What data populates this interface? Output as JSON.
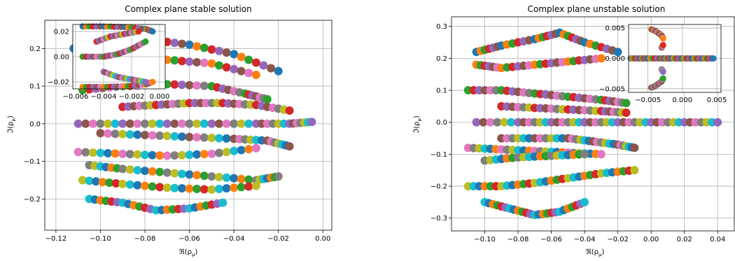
{
  "chart_data": [
    {
      "type": "scatter",
      "title": "Complex plane stable solution",
      "xlabel": "ℜ(ρ_μ)",
      "ylabel": "ℑ(ρ_μ)",
      "xlim": [
        -0.125,
        0.004
      ],
      "ylim": [
        -0.283,
        0.275
      ],
      "xticks": [
        -0.12,
        -0.1,
        -0.08,
        -0.06,
        -0.04,
        -0.02,
        0.0
      ],
      "xtick_labels": [
        "−0.12",
        "−0.10",
        "−0.08",
        "−0.06",
        "−0.04",
        "−0.02",
        "0.00"
      ],
      "yticks": [
        -0.2,
        -0.1,
        0.0,
        0.1,
        0.2
      ],
      "ytick_labels": [
        "−0.2",
        "−0.1",
        "0.0",
        "0.1",
        "0.2"
      ],
      "grid": true,
      "colors": [
        "#1f77b4",
        "#ff7f0e",
        "#2ca02c",
        "#d62728",
        "#9467bd",
        "#8c564b",
        "#e377c2",
        "#7f7f7f",
        "#bcbd22",
        "#17becf"
      ],
      "series": [
        {
          "values": [
            [
              -0.112,
              0.2
            ],
            [
              -0.1,
              0.22
            ],
            [
              -0.08,
              0.225
            ],
            [
              -0.06,
              0.21
            ],
            [
              -0.04,
              0.185
            ],
            [
              -0.02,
              0.14
            ]
          ]
        },
        {
          "values": [
            [
              -0.11,
              0.15
            ],
            [
              -0.09,
              0.16
            ],
            [
              -0.07,
              0.17
            ],
            [
              -0.05,
              0.16
            ],
            [
              -0.03,
              0.13
            ]
          ]
        },
        {
          "values": [
            [
              -0.108,
              0.09
            ],
            [
              -0.09,
              0.1
            ],
            [
              -0.07,
              0.105
            ],
            [
              -0.05,
              0.1
            ],
            [
              -0.035,
              0.08
            ],
            [
              -0.025,
              0.065
            ]
          ]
        },
        {
          "values": [
            [
              -0.09,
              0.045
            ],
            [
              -0.075,
              0.05
            ],
            [
              -0.06,
              0.055
            ],
            [
              -0.045,
              0.055
            ],
            [
              -0.03,
              0.05
            ],
            [
              -0.015,
              0.035
            ]
          ]
        },
        {
          "values": [
            [
              -0.11,
              0.0
            ],
            [
              -0.09,
              0.0
            ],
            [
              -0.07,
              0.0
            ],
            [
              -0.05,
              0.0
            ],
            [
              -0.03,
              0.0
            ],
            [
              -0.015,
              0.0
            ],
            [
              -0.005,
              0.005
            ]
          ]
        },
        {
          "values": [
            [
              -0.1,
              -0.025
            ],
            [
              -0.08,
              -0.03
            ],
            [
              -0.06,
              -0.035
            ],
            [
              -0.04,
              -0.04
            ],
            [
              -0.025,
              -0.045
            ],
            [
              -0.015,
              -0.06
            ]
          ]
        },
        {
          "values": [
            [
              -0.11,
              -0.075
            ],
            [
              -0.09,
              -0.08
            ],
            [
              -0.07,
              -0.085
            ],
            [
              -0.05,
              -0.08
            ],
            [
              -0.03,
              -0.065
            ]
          ]
        },
        {
          "values": [
            [
              -0.105,
              -0.11
            ],
            [
              -0.09,
              -0.12
            ],
            [
              -0.07,
              -0.13
            ],
            [
              -0.05,
              -0.14
            ],
            [
              -0.03,
              -0.15
            ],
            [
              -0.02,
              -0.14
            ]
          ]
        },
        {
          "values": [
            [
              -0.108,
              -0.15
            ],
            [
              -0.09,
              -0.16
            ],
            [
              -0.07,
              -0.17
            ],
            [
              -0.05,
              -0.175
            ],
            [
              -0.03,
              -0.165
            ]
          ]
        },
        {
          "values": [
            [
              -0.105,
              -0.2
            ],
            [
              -0.09,
              -0.21
            ],
            [
              -0.075,
              -0.23
            ],
            [
              -0.06,
              -0.225
            ],
            [
              -0.045,
              -0.21
            ]
          ]
        }
      ],
      "inset": {
        "xlim": [
          -0.0062,
          0.0004
        ],
        "ylim": [
          -0.0255,
          0.0255
        ],
        "xticks": [
          -0.006,
          -0.004,
          -0.002,
          0.0
        ],
        "xtick_labels": [
          "−0.006",
          "−0.004",
          "−0.002",
          "0.000"
        ],
        "yticks": [
          -0.02,
          0.0,
          0.02
        ],
        "ytick_labels": [
          "−0.02",
          "0.00",
          "0.02"
        ],
        "series": [
          {
            "values": [
              [
                -0.0055,
                0.024
              ],
              [
                -0.004,
                0.024
              ],
              [
                -0.0025,
                0.0235
              ],
              [
                -0.001,
                0.022
              ],
              [
                -0.0005,
                0.02
              ]
            ]
          },
          {
            "values": [
              [
                -0.0055,
                -0.024
              ],
              [
                -0.004,
                -0.024
              ],
              [
                -0.0025,
                -0.0235
              ],
              [
                -0.001,
                -0.022
              ],
              [
                -0.0005,
                -0.02
              ]
            ]
          },
          {
            "values": [
              [
                -0.0055,
                0.0
              ],
              [
                -0.004,
                0.0
              ],
              [
                -0.003,
                0.002
              ],
              [
                -0.002,
                0.006
              ],
              [
                -0.001,
                0.012
              ]
            ]
          },
          {
            "values": [
              [
                -0.0045,
                0.012
              ],
              [
                -0.0035,
                0.016
              ],
              [
                -0.0025,
                0.018
              ],
              [
                -0.0015,
                0.02
              ]
            ]
          },
          {
            "values": [
              [
                -0.004,
                -0.012
              ],
              [
                -0.003,
                -0.016
              ],
              [
                -0.002,
                -0.018
              ],
              [
                -0.001,
                -0.02
              ]
            ]
          }
        ]
      }
    },
    {
      "type": "scatter",
      "title": "Complex plane unstable solution",
      "xlabel": "ℜ(ρ_μ)",
      "ylabel": "ℑ(ρ_μ)",
      "xlim": [
        -0.12,
        0.05
      ],
      "ylim": [
        -0.34,
        0.33
      ],
      "xticks": [
        -0.1,
        -0.08,
        -0.06,
        -0.04,
        -0.02,
        0.0,
        0.02,
        0.04
      ],
      "xtick_labels": [
        "−0.10",
        "−0.08",
        "−0.06",
        "−0.04",
        "−0.02",
        "0.00",
        "0.02",
        "0.04"
      ],
      "yticks": [
        -0.3,
        -0.2,
        -0.1,
        0.0,
        0.1,
        0.2,
        0.3
      ],
      "ytick_labels": [
        "−0.3",
        "−0.2",
        "−0.1",
        "0.0",
        "0.1",
        "0.2",
        "0.3"
      ],
      "grid": true,
      "colors": [
        "#1f77b4",
        "#ff7f0e",
        "#2ca02c",
        "#d62728",
        "#9467bd",
        "#8c564b",
        "#e377c2",
        "#7f7f7f",
        "#bcbd22",
        "#17becf"
      ],
      "series": [
        {
          "values": [
            [
              -0.105,
              0.22
            ],
            [
              -0.09,
              0.24
            ],
            [
              -0.07,
              0.26
            ],
            [
              -0.055,
              0.28
            ],
            [
              -0.04,
              0.25
            ],
            [
              -0.02,
              0.22
            ]
          ]
        },
        {
          "values": [
            [
              -0.105,
              0.18
            ],
            [
              -0.09,
              0.17
            ],
            [
              -0.07,
              0.18
            ],
            [
              -0.05,
              0.19
            ],
            [
              -0.03,
              0.2
            ]
          ]
        },
        {
          "values": [
            [
              -0.11,
              0.1
            ],
            [
              -0.09,
              0.1
            ],
            [
              -0.07,
              0.09
            ],
            [
              -0.05,
              0.08
            ],
            [
              -0.03,
              0.07
            ],
            [
              -0.015,
              0.06
            ]
          ]
        },
        {
          "values": [
            [
              -0.09,
              0.05
            ],
            [
              -0.07,
              0.045
            ],
            [
              -0.05,
              0.04
            ],
            [
              -0.03,
              0.035
            ],
            [
              -0.015,
              0.03
            ]
          ]
        },
        {
          "values": [
            [
              -0.105,
              0.0
            ],
            [
              -0.08,
              0.0
            ],
            [
              -0.06,
              0.0
            ],
            [
              -0.04,
              0.0
            ],
            [
              -0.02,
              0.0
            ],
            [
              0.0,
              0.0
            ],
            [
              0.02,
              0.0
            ],
            [
              0.04,
              0.0
            ]
          ]
        },
        {
          "values": [
            [
              -0.09,
              -0.05
            ],
            [
              -0.07,
              -0.05
            ],
            [
              -0.05,
              -0.05
            ],
            [
              -0.035,
              -0.06
            ],
            [
              -0.02,
              -0.07
            ],
            [
              -0.01,
              -0.08
            ]
          ]
        },
        {
          "values": [
            [
              -0.11,
              -0.08
            ],
            [
              -0.09,
              -0.085
            ],
            [
              -0.07,
              -0.09
            ],
            [
              -0.05,
              -0.095
            ],
            [
              -0.03,
              -0.1
            ]
          ]
        },
        {
          "values": [
            [
              -0.1,
              -0.12
            ],
            [
              -0.08,
              -0.11
            ],
            [
              -0.06,
              -0.105
            ],
            [
              -0.04,
              -0.1
            ]
          ]
        },
        {
          "values": [
            [
              -0.11,
              -0.2
            ],
            [
              -0.09,
              -0.2
            ],
            [
              -0.07,
              -0.19
            ],
            [
              -0.05,
              -0.175
            ],
            [
              -0.03,
              -0.16
            ],
            [
              -0.01,
              -0.15
            ]
          ]
        },
        {
          "values": [
            [
              -0.1,
              -0.25
            ],
            [
              -0.085,
              -0.27
            ],
            [
              -0.07,
              -0.29
            ],
            [
              -0.055,
              -0.28
            ],
            [
              -0.04,
              -0.25
            ]
          ]
        }
      ],
      "inset": {
        "xlim": [
          -0.0078,
          0.0056
        ],
        "ylim": [
          -0.0056,
          0.0056
        ],
        "xticks": [
          -0.005,
          0.0,
          0.005
        ],
        "xtick_labels": [
          "−0.005",
          "0.000",
          "0.005"
        ],
        "yticks": [
          -0.005,
          0.0,
          0.005
        ],
        "ytick_labels": [
          "−0.005",
          "0.000",
          "0.005"
        ],
        "series": [
          {
            "values": [
              [
                -0.0075,
                0.0
              ],
              [
                -0.006,
                0.0
              ],
              [
                -0.005,
                0.0
              ],
              [
                -0.003,
                0.0
              ],
              [
                -0.0025,
                0.0
              ],
              [
                -0.0015,
                0.0
              ],
              [
                0.0,
                0.0
              ],
              [
                0.0015,
                0.0
              ],
              [
                0.003,
                0.0
              ],
              [
                0.0045,
                0.0
              ]
            ]
          },
          {
            "values": [
              [
                -0.0045,
                0.0048
              ],
              [
                -0.004,
                0.0046
              ],
              [
                -0.0035,
                0.0042
              ],
              [
                -0.003,
                0.0038
              ],
              [
                -0.0028,
                0.0033
              ]
            ]
          },
          {
            "values": [
              [
                -0.0045,
                -0.0048
              ],
              [
                -0.004,
                -0.0046
              ],
              [
                -0.0035,
                -0.0042
              ],
              [
                -0.003,
                -0.0038
              ],
              [
                -0.0028,
                -0.0033
              ]
            ]
          },
          {
            "values": [
              [
                -0.003,
                0.0018
              ],
              [
                -0.0028,
                0.0022
              ]
            ]
          },
          {
            "values": [
              [
                -0.003,
                -0.0018
              ],
              [
                -0.0028,
                -0.0022
              ]
            ]
          }
        ]
      }
    }
  ]
}
